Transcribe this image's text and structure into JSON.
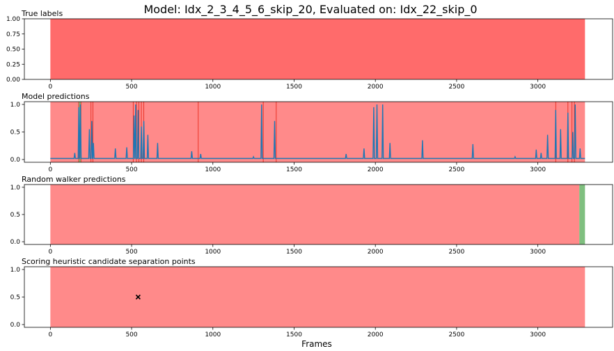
{
  "title": "Model: Idx_2_3_4_5_6_skip_20, Evaluated on: Idx_22_skip_0",
  "xlabel": "Frames",
  "colors": {
    "red_region": "#ff6b6b",
    "red_region_light": "#ff8a8a",
    "green_region": "#7fbf7f",
    "line": "#1f77b4",
    "separator": "#e8291c"
  },
  "chart_data": [
    {
      "type": "area",
      "title": "True labels",
      "xlim": [
        -160,
        3460
      ],
      "ylim": [
        0,
        1
      ],
      "xticks": [
        0,
        500,
        1000,
        1500,
        2000,
        2500,
        3000
      ],
      "yticks": [
        "0.00",
        "0.25",
        "0.50",
        "0.75",
        "1.00"
      ],
      "regions": [
        {
          "start": 0,
          "end": 3290,
          "label": "red"
        }
      ]
    },
    {
      "type": "line",
      "title": "Model predictions",
      "xlim": [
        -160,
        3460
      ],
      "ylim": [
        -0.05,
        1.05
      ],
      "xticks": [
        0,
        500,
        1000,
        1500,
        2000,
        2500,
        3000
      ],
      "yticks": [
        "0.0",
        "0.5",
        "1.0"
      ],
      "regions": [
        {
          "start": 0,
          "end": 3290,
          "label": "red"
        },
        {
          "start": 172,
          "end": 190,
          "label": "green"
        }
      ],
      "separators": [
        175,
        188,
        250,
        262,
        510,
        530,
        545,
        560,
        575,
        910,
        1310,
        1390,
        3110,
        3185,
        3210,
        3225
      ],
      "baseline": 0.02,
      "spikes": [
        [
          150,
          0.12
        ],
        [
          175,
          0.95
        ],
        [
          185,
          1.0
        ],
        [
          240,
          0.55
        ],
        [
          255,
          0.7
        ],
        [
          265,
          0.3
        ],
        [
          400,
          0.2
        ],
        [
          470,
          0.22
        ],
        [
          515,
          0.8
        ],
        [
          525,
          1.0
        ],
        [
          540,
          0.9
        ],
        [
          560,
          0.6
        ],
        [
          575,
          0.7
        ],
        [
          600,
          0.45
        ],
        [
          660,
          0.3
        ],
        [
          870,
          0.15
        ],
        [
          925,
          0.1
        ],
        [
          1250,
          0.05
        ],
        [
          1300,
          1.0
        ],
        [
          1380,
          0.7
        ],
        [
          1820,
          0.1
        ],
        [
          1930,
          0.2
        ],
        [
          1990,
          0.95
        ],
        [
          2010,
          1.0
        ],
        [
          2045,
          1.0
        ],
        [
          2090,
          0.3
        ],
        [
          2290,
          0.35
        ],
        [
          2600,
          0.28
        ],
        [
          2860,
          0.05
        ],
        [
          2990,
          0.18
        ],
        [
          3020,
          0.12
        ],
        [
          3060,
          0.45
        ],
        [
          3110,
          0.9
        ],
        [
          3140,
          0.55
        ],
        [
          3185,
          0.85
        ],
        [
          3215,
          0.5
        ],
        [
          3230,
          1.0
        ],
        [
          3260,
          0.2
        ]
      ]
    },
    {
      "type": "area",
      "title": "Random walker predictions",
      "xlim": [
        -160,
        3460
      ],
      "ylim": [
        -0.05,
        1.05
      ],
      "xticks": [
        0,
        500,
        1000,
        1500,
        2000,
        2500,
        3000
      ],
      "yticks": [
        "0.0",
        "0.5",
        "1.0"
      ],
      "regions": [
        {
          "start": 0,
          "end": 3255,
          "label": "red"
        },
        {
          "start": 3255,
          "end": 3290,
          "label": "green"
        }
      ]
    },
    {
      "type": "scatter",
      "title": "Scoring heuristic candidate separation points",
      "xlim": [
        -160,
        3460
      ],
      "ylim": [
        -0.05,
        1.05
      ],
      "xticks": [
        0,
        500,
        1000,
        1500,
        2000,
        2500,
        3000
      ],
      "yticks": [
        "0.0",
        "0.5",
        "1.0"
      ],
      "regions": [
        {
          "start": 0,
          "end": 3290,
          "label": "red"
        }
      ],
      "points": [
        {
          "x": 540,
          "y": 0.5,
          "marker": "x"
        }
      ]
    }
  ]
}
